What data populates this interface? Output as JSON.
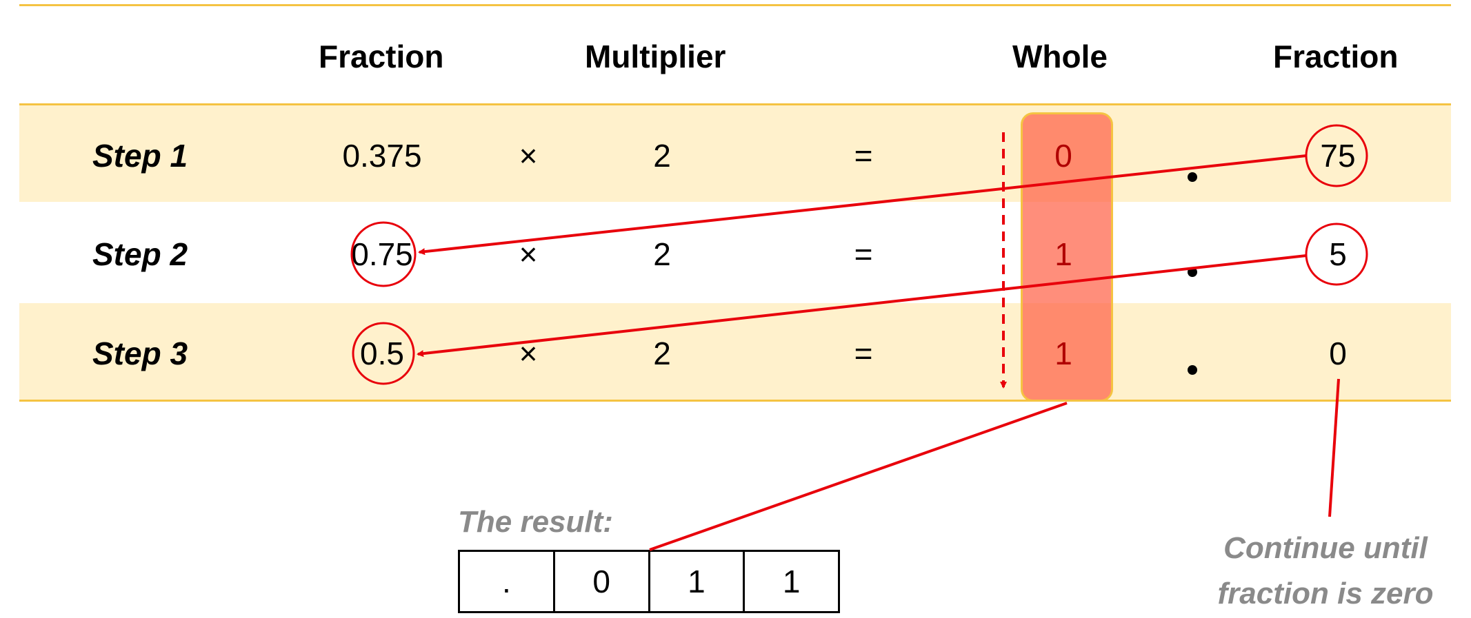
{
  "headers": {
    "fraction_in": "Fraction",
    "multiplier": "Multiplier",
    "whole": "Whole",
    "fraction_out": "Fraction"
  },
  "steps": [
    {
      "label": "Step 1",
      "fraction": "0.375",
      "times": "×",
      "multiplier": "2",
      "equals": "=",
      "whole": "0",
      "fraction_out": "75"
    },
    {
      "label": "Step 2",
      "fraction": "0.75",
      "times": "×",
      "multiplier": "2",
      "equals": "=",
      "whole": "1",
      "fraction_out": "5"
    },
    {
      "label": "Step 3",
      "fraction": "0.5",
      "times": "×",
      "multiplier": "2",
      "equals": "=",
      "whole": "1",
      "fraction_out": "0"
    }
  ],
  "result": {
    "label": "The result:",
    "cells": [
      ".",
      "0",
      "1",
      "1"
    ]
  },
  "note": {
    "line1": "Continue until",
    "line2": "fraction is zero"
  },
  "colors": {
    "rule": "#f5c342",
    "band": "#fff1cc",
    "highlight": "#ff6248",
    "arrow": "#e8000b",
    "note_text": "#8a8a8a"
  }
}
